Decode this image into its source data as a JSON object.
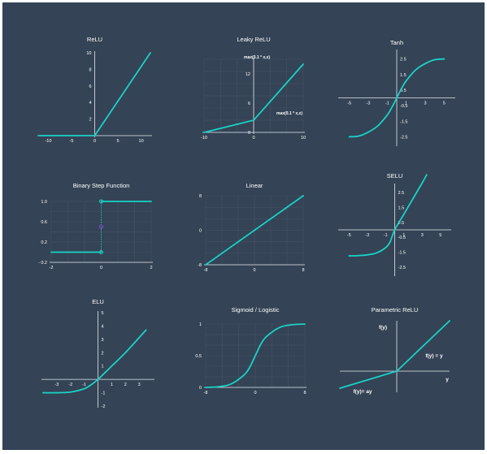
{
  "colors": {
    "background": "#344355",
    "curve": "#19d3c5",
    "axis": "#e6eaef",
    "grid": "#4a5a6d",
    "text": "#ffffff",
    "marker": "#8b3fd6"
  },
  "chart_data": [
    {
      "type": "line",
      "title": "ReLU",
      "xlim": [
        -12,
        12
      ],
      "ylim": [
        0,
        10
      ],
      "xticks": [
        -10,
        -5,
        0,
        5,
        10
      ],
      "yticks": [
        2,
        4,
        6,
        8,
        10
      ],
      "series": [
        {
          "x": [
            -12,
            0,
            12
          ],
          "y": [
            0,
            0,
            10
          ]
        }
      ]
    },
    {
      "type": "line",
      "title": "Leaky ReLU",
      "xlim": [
        -10,
        10
      ],
      "ylim": [
        0,
        15
      ],
      "xticks": [
        -10,
        0,
        10
      ],
      "yticks": [
        0,
        6,
        12
      ],
      "annotations": [
        "max(0.1 * x,x)",
        "max(0.1 * x,x)"
      ],
      "series": [
        {
          "x": [
            -10,
            0,
            10
          ],
          "y": [
            0,
            2.5,
            14
          ]
        }
      ]
    },
    {
      "type": "line",
      "title": "Tanh",
      "xlim": [
        -6,
        6
      ],
      "ylim": [
        -3,
        3
      ],
      "xticks": [
        -5,
        -3,
        -1,
        1,
        3,
        5
      ],
      "yticks": [
        -2.5,
        -1.5,
        -0.5,
        0.5,
        1.5,
        2.5
      ],
      "ytick_labels": [
        "-2.5",
        "-1.5",
        "-0.5",
        "0.5",
        "1.5",
        "2.5"
      ],
      "series": [
        {
          "x": [
            -5,
            -4,
            -3,
            -2,
            -1,
            -0.5,
            0,
            0.5,
            1,
            2,
            3,
            4,
            5
          ],
          "y": [
            -2.5,
            -2.45,
            -2.2,
            -1.8,
            -1.1,
            -0.6,
            0,
            0.6,
            1.1,
            1.8,
            2.2,
            2.45,
            2.5
          ]
        }
      ]
    },
    {
      "type": "line",
      "title": "Binary Step Function",
      "xlim": [
        -2,
        2
      ],
      "ylim": [
        -0.2,
        1.0
      ],
      "xticks": [
        -2,
        0,
        2
      ],
      "yticks": [
        -0.2,
        0.2,
        0.6,
        1.0
      ],
      "ytick_labels": [
        "- 0.2",
        "0.2",
        "0.6",
        "1.0"
      ],
      "series": [
        {
          "x": [
            -2,
            0
          ],
          "y": [
            0,
            0
          ]
        },
        {
          "x": [
            0,
            2
          ],
          "y": [
            1,
            1
          ]
        }
      ]
    },
    {
      "type": "line",
      "title": "Linear",
      "xlim": [
        -8,
        8
      ],
      "ylim": [
        -8,
        8
      ],
      "xticks": [
        -8,
        0,
        8
      ],
      "yticks": [
        -8,
        0,
        8
      ],
      "series": [
        {
          "x": [
            -8,
            8
          ],
          "y": [
            -8,
            8
          ]
        }
      ]
    },
    {
      "type": "line",
      "title": "SELU",
      "xlim": [
        -6,
        6
      ],
      "ylim": [
        -3,
        3
      ],
      "xticks": [
        -5,
        -3,
        -1,
        1,
        3,
        5
      ],
      "yticks": [
        -2.5,
        -1.5,
        -0.5,
        0.5,
        1.5,
        2.5
      ],
      "series": [
        {
          "x": [
            -5,
            -4,
            -3,
            -2,
            -1,
            -0.5,
            0,
            1,
            2,
            3,
            3.5
          ],
          "y": [
            -1.75,
            -1.73,
            -1.68,
            -1.55,
            -1.2,
            -0.8,
            0,
            1.05,
            2.1,
            3.15,
            3.7
          ]
        }
      ]
    },
    {
      "type": "line",
      "title": "ELU",
      "xlim": [
        -4,
        4
      ],
      "ylim": [
        -2,
        5
      ],
      "xticks": [
        -3,
        -2,
        -1,
        1,
        2,
        3
      ],
      "yticks": [
        -2,
        -1,
        1,
        2,
        3,
        4,
        5
      ],
      "series": [
        {
          "x": [
            -4,
            -3,
            -2,
            -1,
            -0.5,
            0,
            1,
            2,
            3.5
          ],
          "y": [
            -1,
            -1,
            -0.95,
            -0.7,
            -0.4,
            0,
            1,
            2,
            3.7
          ]
        }
      ]
    },
    {
      "type": "line",
      "title": "Sigmoid / Logistic",
      "xlim": [
        -8,
        8
      ],
      "ylim": [
        0,
        1
      ],
      "xticks": [
        -8,
        0,
        8
      ],
      "yticks": [
        0,
        0.5,
        1
      ],
      "ytick_labels": [
        "0",
        "0.5",
        "1"
      ],
      "series": [
        {
          "x": [
            -8,
            -6,
            -4,
            -2,
            -1,
            0,
            1,
            2,
            4,
            6,
            8
          ],
          "y": [
            0,
            0.01,
            0.05,
            0.18,
            0.3,
            0.5,
            0.7,
            0.82,
            0.95,
            0.99,
            1
          ]
        }
      ]
    },
    {
      "type": "line",
      "title": "Parametric ReLU",
      "annotations": [
        "f(y)",
        "f(y) = y",
        "y",
        "f(y)= ay"
      ],
      "series": [
        {
          "x": [
            -1,
            0,
            1
          ],
          "y": [
            -0.4,
            0,
            1
          ]
        }
      ]
    }
  ]
}
